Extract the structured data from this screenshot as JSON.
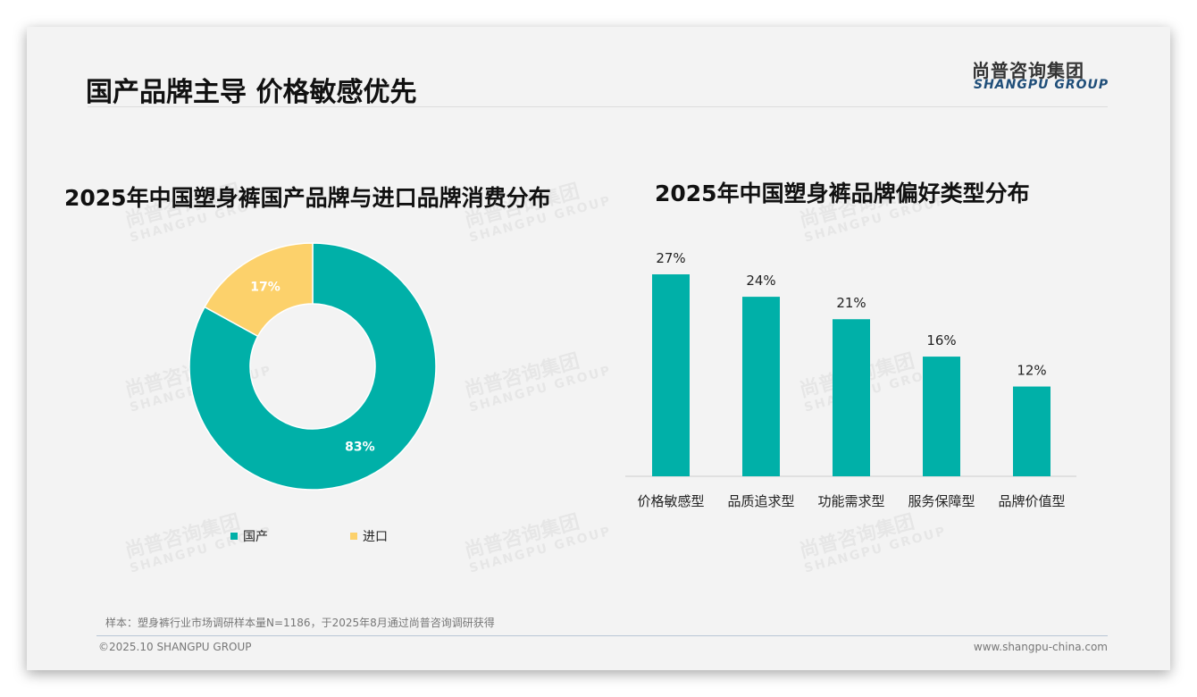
{
  "header": {
    "title": "国产品牌主导 价格敏感优先",
    "logo_cn": "尚普咨询集团",
    "logo_en": "SHANGPU GROUP"
  },
  "watermark": {
    "cn": "尚普咨询集团",
    "en": "SHANGPU GROUP"
  },
  "footer": {
    "note": "样本：塑身裤行业市场调研样本量N=1186，于2025年8月通过尚普咨询调研获得",
    "copyright": "©2025.10 SHANGPU GROUP",
    "website": "www.shangpu-china.com"
  },
  "colors": {
    "teal": "#00b0a8",
    "yellow": "#fcd16b"
  },
  "chart_data": [
    {
      "type": "pie",
      "title": "2025年中国塑身裤国产品牌与进口品牌消费分布",
      "categories": [
        "国产",
        "进口"
      ],
      "values": [
        83,
        17
      ],
      "labels": [
        "83%",
        "17%"
      ],
      "legend_placement": "bottom"
    },
    {
      "type": "bar",
      "title": "2025年中国塑身裤品牌偏好类型分布",
      "categories": [
        "价格敏感型",
        "品质追求型",
        "功能需求型",
        "服务保障型",
        "品牌价值型"
      ],
      "values": [
        27,
        24,
        21,
        16,
        12
      ],
      "labels": [
        "27%",
        "24%",
        "21%",
        "16%",
        "12%"
      ],
      "ylim": [
        0,
        30
      ],
      "grid": false
    }
  ]
}
